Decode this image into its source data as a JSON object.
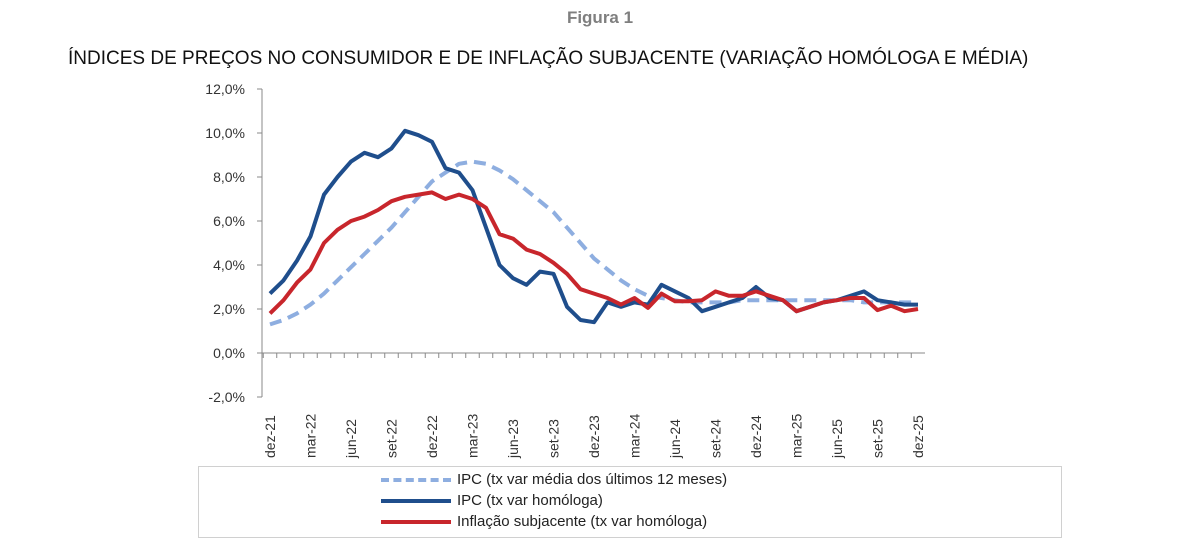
{
  "figure_label": "Figura 1",
  "chart_data": {
    "type": "line",
    "title": "ÍNDICES DE PREÇOS NO CONSUMIDOR E DE INFLAÇÃO SUBJACENTE (VARIAÇÃO HOMÓLOGA E MÉDIA)",
    "ylim": [
      -2,
      12
    ],
    "yticks": [
      "-2,0%",
      "0,0%",
      "2,0%",
      "4,0%",
      "6,0%",
      "8,0%",
      "10,0%",
      "12,0%"
    ],
    "xticks": [
      "dez-21",
      "mar-22",
      "jun-22",
      "set-22",
      "dez-22",
      "mar-23",
      "jun-23",
      "set-23",
      "dez-23",
      "mar-24",
      "jun-24",
      "set-24",
      "dez-24",
      "mar-25",
      "jun-25",
      "set-25",
      "dez-25"
    ],
    "x_start": "dez-21",
    "x_end": "dez-25",
    "x_frequency": "monthly",
    "grid": false,
    "legend_position": "bottom",
    "series": [
      {
        "name": "IPC (tx var média dos últimos 12 meses)",
        "color": "#8eaee0",
        "style": "dashed",
        "values": [
          1.3,
          1.5,
          1.8,
          2.2,
          2.7,
          3.3,
          3.9,
          4.5,
          5.1,
          5.7,
          6.4,
          7.1,
          7.8,
          8.2,
          8.6,
          8.7,
          8.6,
          8.3,
          7.9,
          7.4,
          6.9,
          6.4,
          5.7,
          5.0,
          4.3,
          3.8,
          3.3,
          2.9,
          2.6,
          2.5,
          2.4,
          2.3,
          2.3,
          2.3,
          2.3,
          2.4,
          2.4,
          2.4,
          2.4,
          2.4,
          2.4,
          2.4,
          2.4,
          2.4,
          2.3,
          2.3,
          2.3,
          2.3,
          2.3
        ]
      },
      {
        "name": "IPC (tx var homóloga)",
        "color": "#1f4e8c",
        "style": "solid",
        "values": [
          2.7,
          3.3,
          4.2,
          5.3,
          7.2,
          8.0,
          8.7,
          9.1,
          8.9,
          9.3,
          10.1,
          9.9,
          9.6,
          8.4,
          8.2,
          7.4,
          5.7,
          4.0,
          3.4,
          3.1,
          3.7,
          3.6,
          2.1,
          1.5,
          1.4,
          2.3,
          2.1,
          2.3,
          2.2,
          3.1,
          2.8,
          2.5,
          1.9,
          2.1,
          2.3,
          2.5,
          3.0,
          2.5,
          2.4,
          1.9,
          2.1,
          2.3,
          2.4,
          2.6,
          2.8,
          2.4,
          2.3,
          2.2,
          2.2
        ]
      },
      {
        "name": "Inflação subjacente (tx var homóloga)",
        "color": "#c8262c",
        "style": "solid",
        "values": [
          1.8,
          2.4,
          3.2,
          3.8,
          5.0,
          5.6,
          6.0,
          6.2,
          6.5,
          6.9,
          7.1,
          7.2,
          7.3,
          7.0,
          7.2,
          7.0,
          6.6,
          5.4,
          5.2,
          4.7,
          4.5,
          4.1,
          3.6,
          2.9,
          2.7,
          2.5,
          2.2,
          2.5,
          2.05,
          2.7,
          2.35,
          2.35,
          2.4,
          2.8,
          2.6,
          2.6,
          2.8,
          2.6,
          2.4,
          1.9,
          2.1,
          2.3,
          2.4,
          2.5,
          2.5,
          1.95,
          2.15,
          1.9,
          2.0
        ]
      }
    ]
  }
}
